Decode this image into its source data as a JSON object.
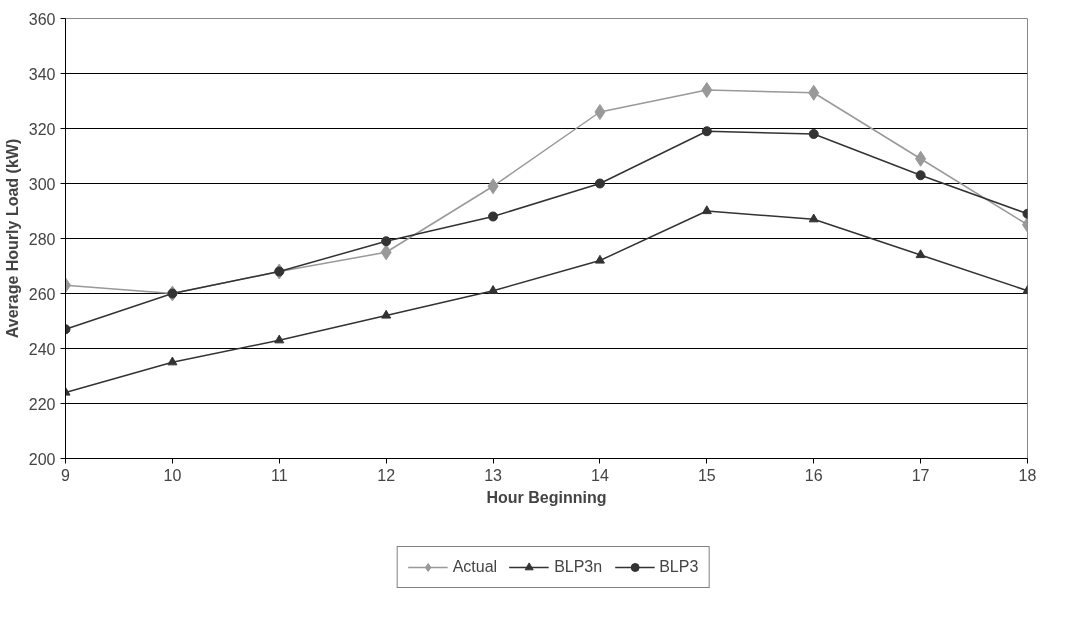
{
  "chart_data": {
    "type": "line",
    "xlabel": "Hour Beginning",
    "ylabel": "Average Hourly Load (kW)",
    "x": [
      9,
      10,
      11,
      12,
      13,
      14,
      15,
      16,
      17,
      18
    ],
    "xlim": [
      9,
      18
    ],
    "xticks": [
      9,
      10,
      11,
      12,
      13,
      14,
      15,
      16,
      17,
      18
    ],
    "ylim": [
      200,
      360
    ],
    "yticks": [
      200,
      220,
      240,
      260,
      280,
      300,
      320,
      340,
      360
    ],
    "grid": "y",
    "legend": "bottom",
    "series": [
      {
        "name": "Actual",
        "color": "#999999",
        "marker": "diamond",
        "values": [
          263,
          260,
          268,
          275,
          299,
          326,
          334,
          333,
          309,
          285
        ]
      },
      {
        "name": "BLP3n",
        "color": "#333333",
        "marker": "triangle",
        "values": [
          224,
          235,
          243,
          252,
          261,
          272,
          290,
          287,
          274,
          261
        ]
      },
      {
        "name": "BLP3",
        "color": "#333333",
        "marker": "circle",
        "values": [
          247,
          260,
          268,
          279,
          288,
          300,
          319,
          318,
          303,
          289
        ]
      }
    ]
  }
}
